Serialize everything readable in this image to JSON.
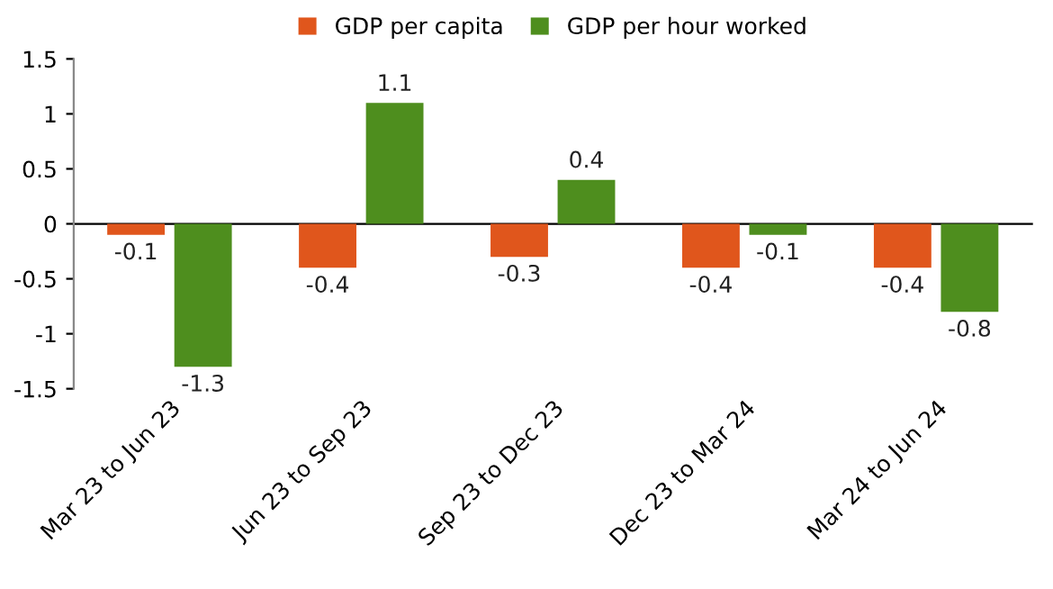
{
  "chart_data": {
    "type": "bar",
    "categories": [
      "Mar 23 to Jun 23",
      "Jun 23 to Sep 23",
      "Sep 23 to Dec 23",
      "Dec 23 to Mar 24",
      "Mar 24 to Jun 24"
    ],
    "series": [
      {
        "name": "GDP per capita",
        "color": "#e0561c",
        "values": [
          -0.1,
          -0.4,
          -0.3,
          -0.4,
          -0.4
        ]
      },
      {
        "name": "GDP per hour worked",
        "color": "#4e8e1e",
        "values": [
          -1.3,
          1.1,
          0.4,
          -0.1,
          -0.8
        ]
      }
    ],
    "ylim": [
      -1.5,
      1.5
    ],
    "yticks": [
      -1.5,
      -1,
      -0.5,
      0,
      0.5,
      1,
      1.5
    ],
    "data_labels": true,
    "legend": "top"
  }
}
